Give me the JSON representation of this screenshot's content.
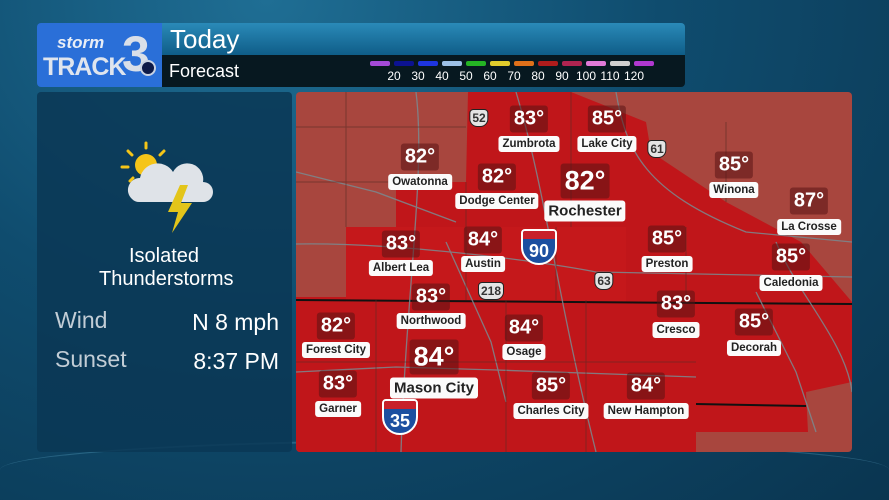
{
  "logo": {
    "text_top": "storm",
    "text_bottom": "TRACK",
    "number": "3"
  },
  "header": {
    "title": "Today",
    "subtitle": "Forecast"
  },
  "temp_legend": [
    {
      "label": "",
      "color": "#a44ad8"
    },
    {
      "label": "20",
      "color": "#0c1290"
    },
    {
      "label": "30",
      "color": "#1e35e0"
    },
    {
      "label": "40",
      "color": "#9cc0e6"
    },
    {
      "label": "50",
      "color": "#25b424"
    },
    {
      "label": "60",
      "color": "#e1cc2c"
    },
    {
      "label": "70",
      "color": "#e0701a"
    },
    {
      "label": "80",
      "color": "#b01c1c"
    },
    {
      "label": "90",
      "color": "#b02450"
    },
    {
      "label": "100",
      "color": "#e07ad8"
    },
    {
      "label": "110",
      "color": "#d0d0d0"
    },
    {
      "label": "120",
      "color": "#b038d0"
    }
  ],
  "panel": {
    "icon": "sun-cloud-lightning-icon",
    "condition": "Isolated Thunderstorms",
    "wind_label": "Wind",
    "wind_value": "N 8 mph",
    "sunset_label": "Sunset",
    "sunset_value": "8:37 PM"
  },
  "cities": [
    {
      "name": "Zumbrota",
      "temp": "83°"
    },
    {
      "name": "Lake City",
      "temp": "85°"
    },
    {
      "name": "Owatonna",
      "temp": "82°"
    },
    {
      "name": "Dodge Center",
      "temp": "82°"
    },
    {
      "name": "Rochester",
      "temp": "82°"
    },
    {
      "name": "Winona",
      "temp": "85°"
    },
    {
      "name": "La Crosse",
      "temp": "87°"
    },
    {
      "name": "Albert Lea",
      "temp": "83°"
    },
    {
      "name": "Austin",
      "temp": "84°"
    },
    {
      "name": "Preston",
      "temp": "85°"
    },
    {
      "name": "Caledonia",
      "temp": "85°"
    },
    {
      "name": "Northwood",
      "temp": "83°"
    },
    {
      "name": "Forest City",
      "temp": "82°"
    },
    {
      "name": "Osage",
      "temp": "84°"
    },
    {
      "name": "Cresco",
      "temp": "83°"
    },
    {
      "name": "Decorah",
      "temp": "85°"
    },
    {
      "name": "Mason City",
      "temp": "84°"
    },
    {
      "name": "Garner",
      "temp": "83°"
    },
    {
      "name": "Charles City",
      "temp": "85°"
    },
    {
      "name": "New Hampton",
      "temp": "84°"
    }
  ],
  "highways": [
    {
      "type": "us",
      "number": "52"
    },
    {
      "type": "us",
      "number": "61"
    },
    {
      "type": "interstate",
      "number": "90"
    },
    {
      "type": "us",
      "number": "218"
    },
    {
      "type": "us",
      "number": "63"
    },
    {
      "type": "interstate",
      "number": "35"
    }
  ]
}
